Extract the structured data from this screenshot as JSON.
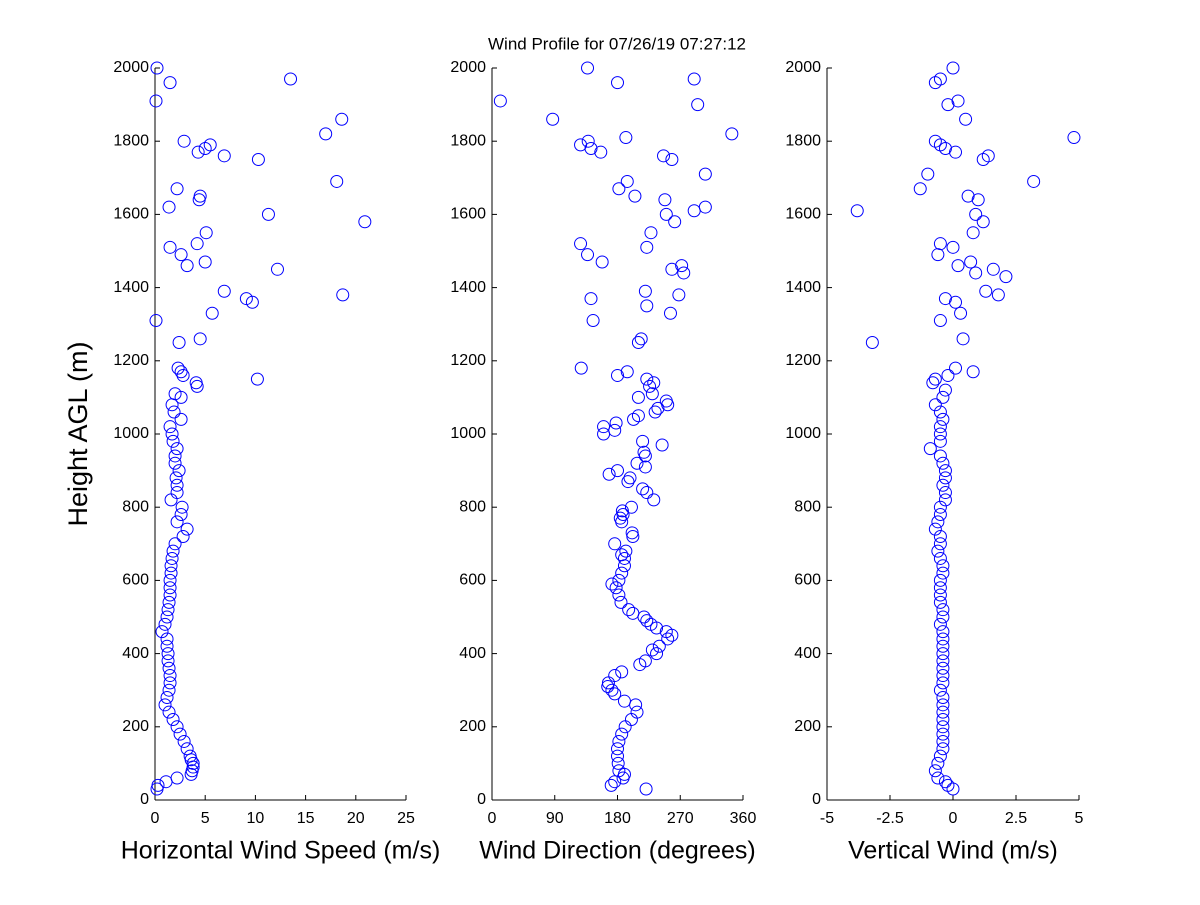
{
  "title": "Wind Profile for  07/26/19 07:27:12",
  "chart_data": [
    {
      "type": "scatter",
      "x_label": "Horizontal Wind Speed (m/s)",
      "y_label": "Height AGL (m)",
      "color": "#0000ff",
      "xlim": [
        0,
        25
      ],
      "xticks": [
        0,
        5,
        10,
        15,
        20,
        25
      ],
      "ylim": [
        0,
        2000
      ],
      "yticks": [
        0,
        200,
        400,
        600,
        800,
        1000,
        1200,
        1400,
        1600,
        1800,
        2000
      ],
      "x": [
        0.2,
        0.3,
        1.1,
        2.2,
        3.6,
        3.7,
        3.8,
        3.8,
        3.6,
        3.5,
        3.2,
        2.9,
        2.5,
        2.2,
        1.8,
        1.4,
        1.0,
        1.2,
        1.4,
        1.5,
        1.5,
        1.4,
        1.3,
        1.3,
        1.2,
        1.2,
        0.7,
        1.0,
        1.2,
        1.3,
        1.4,
        1.5,
        1.5,
        1.5,
        1.6,
        1.6,
        1.7,
        1.8,
        2.0,
        2.8,
        3.2,
        2.2,
        2.6,
        2.7,
        1.6,
        2.2,
        2.2,
        2.1,
        2.4,
        2.0,
        2.0,
        2.2,
        1.8,
        1.7,
        1.5,
        2.6,
        1.9,
        1.7,
        2.6,
        2.0,
        4.2,
        4.1,
        10.2,
        2.8,
        2.6,
        2.3,
        2.4,
        4.5,
        0.1,
        5.7,
        9.7,
        9.1,
        18.7,
        6.9,
        12.2,
        3.2,
        5.0,
        2.6,
        1.5,
        4.2,
        5.1,
        20.9,
        11.3,
        1.4,
        4.4,
        4.5,
        2.2,
        18.1,
        10.3,
        6.9,
        4.3,
        5.0,
        5.5,
        2.9,
        17.0,
        18.6,
        0.1,
        1.5,
        13.5,
        0.2
      ],
      "y": [
        30,
        40,
        50,
        60,
        70,
        80,
        90,
        100,
        110,
        120,
        140,
        160,
        180,
        200,
        220,
        240,
        260,
        280,
        300,
        320,
        340,
        360,
        380,
        400,
        420,
        440,
        460,
        480,
        500,
        520,
        540,
        560,
        580,
        600,
        620,
        640,
        660,
        680,
        700,
        720,
        740,
        760,
        780,
        800,
        820,
        840,
        860,
        880,
        900,
        920,
        940,
        960,
        980,
        1000,
        1020,
        1040,
        1060,
        1080,
        1100,
        1110,
        1130,
        1140,
        1150,
        1160,
        1170,
        1180,
        1250,
        1260,
        1310,
        1330,
        1360,
        1370,
        1380,
        1390,
        1450,
        1460,
        1470,
        1490,
        1510,
        1520,
        1550,
        1580,
        1600,
        1620,
        1640,
        1650,
        1670,
        1690,
        1750,
        1760,
        1770,
        1780,
        1790,
        1800,
        1820,
        1860,
        1910,
        1960,
        1970,
        2000
      ]
    },
    {
      "type": "scatter",
      "x_label": "Wind Direction (degrees)",
      "color": "#0000ff",
      "xlim": [
        0,
        360
      ],
      "xticks": [
        0,
        90,
        180,
        270,
        360
      ],
      "ylim": [
        0,
        2000
      ],
      "yticks": [
        0,
        200,
        400,
        600,
        800,
        1000,
        1200,
        1400,
        1600,
        1800,
        2000
      ],
      "x": [
        221,
        171,
        176,
        188,
        190,
        182,
        181,
        180,
        180,
        182,
        186,
        191,
        200,
        208,
        206,
        190,
        176,
        172,
        166,
        167,
        176,
        186,
        212,
        220,
        236,
        230,
        240,
        252,
        258,
        250,
        236,
        228,
        222,
        218,
        202,
        196,
        185,
        182,
        178,
        172,
        182,
        186,
        190,
        190,
        186,
        192,
        176,
        202,
        201,
        186,
        184,
        188,
        187,
        200,
        232,
        222,
        216,
        195,
        198,
        168,
        180,
        220,
        208,
        220,
        218,
        244,
        216,
        160,
        176,
        160,
        178,
        203,
        210,
        234,
        238,
        252,
        250,
        210,
        230,
        226,
        232,
        222,
        180,
        194,
        128,
        210,
        214,
        145,
        256,
        222,
        142,
        268,
        220,
        275,
        258,
        272,
        158,
        137,
        222,
        127,
        228,
        262,
        250,
        290,
        306,
        248,
        205,
        182,
        194,
        306,
        258,
        246,
        156,
        142,
        127,
        138,
        192,
        344,
        87,
        295,
        12,
        180,
        290,
        137
      ],
      "y": [
        30,
        40,
        50,
        60,
        70,
        80,
        100,
        120,
        140,
        160,
        180,
        200,
        220,
        240,
        260,
        270,
        290,
        300,
        310,
        320,
        340,
        350,
        370,
        380,
        400,
        410,
        420,
        440,
        450,
        460,
        470,
        480,
        490,
        500,
        510,
        520,
        540,
        560,
        580,
        590,
        600,
        620,
        640,
        660,
        670,
        680,
        700,
        720,
        730,
        760,
        770,
        780,
        790,
        800,
        820,
        840,
        850,
        870,
        880,
        890,
        900,
        910,
        920,
        940,
        950,
        970,
        980,
        1000,
        1010,
        1020,
        1030,
        1040,
        1050,
        1060,
        1070,
        1080,
        1090,
        1100,
        1110,
        1130,
        1140,
        1150,
        1160,
        1170,
        1180,
        1250,
        1260,
        1310,
        1330,
        1350,
        1370,
        1380,
        1390,
        1440,
        1450,
        1460,
        1470,
        1490,
        1510,
        1520,
        1550,
        1580,
        1600,
        1610,
        1620,
        1640,
        1650,
        1670,
        1690,
        1710,
        1750,
        1760,
        1770,
        1780,
        1790,
        1800,
        1810,
        1820,
        1860,
        1900,
        1910,
        1960,
        1970,
        2000
      ]
    },
    {
      "type": "scatter",
      "x_label": "Vertical Wind (m/s)",
      "color": "#0000ff",
      "xlim": [
        -5,
        5
      ],
      "xticks": [
        -5,
        -2.5,
        0,
        2.5,
        5
      ],
      "ylim": [
        0,
        2000
      ],
      "yticks": [
        0,
        200,
        400,
        600,
        800,
        1000,
        1200,
        1400,
        1600,
        1800,
        2000
      ],
      "x": [
        0.0,
        -0.2,
        -0.3,
        -0.6,
        -0.7,
        -0.6,
        -0.5,
        -0.4,
        -0.4,
        -0.4,
        -0.4,
        -0.4,
        -0.4,
        -0.4,
        -0.4,
        -0.5,
        -0.4,
        -0.4,
        -0.4,
        -0.4,
        -0.4,
        -0.4,
        -0.4,
        -0.4,
        -0.5,
        -0.4,
        -0.4,
        -0.5,
        -0.5,
        -0.5,
        -0.5,
        -0.4,
        -0.4,
        -0.5,
        -0.6,
        -0.5,
        -0.5,
        -0.7,
        -0.6,
        -0.5,
        -0.5,
        -0.3,
        -0.3,
        -0.4,
        -0.3,
        -0.3,
        -0.4,
        -0.5,
        -0.9,
        -0.5,
        -0.5,
        -0.5,
        -0.4,
        -0.5,
        -0.7,
        -0.4,
        -0.3,
        -0.8,
        -0.7,
        -0.2,
        0.8,
        0.1,
        -3.2,
        0.4,
        -0.5,
        0.3,
        0.1,
        -0.3,
        1.8,
        1.3,
        2.1,
        0.9,
        1.6,
        0.2,
        0.7,
        -0.6,
        0.0,
        -0.5,
        0.8,
        1.2,
        0.9,
        -3.8,
        1.0,
        0.6,
        -1.3,
        3.2,
        -1.0,
        1.2,
        1.4,
        0.1,
        -0.3,
        -0.5,
        -0.7,
        4.8,
        0.5,
        -0.2,
        0.2,
        -0.7,
        -0.5,
        0.0
      ],
      "y": [
        30,
        40,
        50,
        60,
        80,
        100,
        120,
        140,
        160,
        180,
        200,
        220,
        240,
        260,
        280,
        300,
        320,
        340,
        360,
        380,
        400,
        420,
        440,
        460,
        480,
        500,
        520,
        540,
        560,
        580,
        600,
        620,
        640,
        660,
        680,
        700,
        720,
        740,
        760,
        780,
        800,
        820,
        840,
        860,
        880,
        900,
        920,
        940,
        960,
        980,
        1000,
        1020,
        1040,
        1060,
        1080,
        1100,
        1120,
        1140,
        1150,
        1160,
        1170,
        1180,
        1250,
        1260,
        1310,
        1330,
        1360,
        1370,
        1380,
        1390,
        1430,
        1440,
        1450,
        1460,
        1470,
        1490,
        1510,
        1520,
        1550,
        1580,
        1600,
        1610,
        1640,
        1650,
        1670,
        1690,
        1710,
        1750,
        1760,
        1770,
        1780,
        1790,
        1800,
        1810,
        1860,
        1900,
        1910,
        1960,
        1970,
        2000
      ]
    }
  ]
}
